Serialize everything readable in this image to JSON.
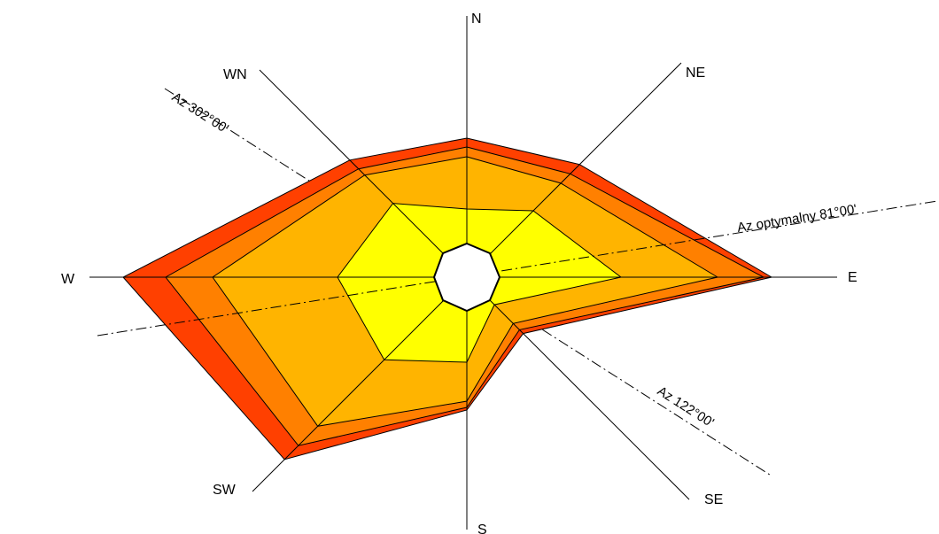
{
  "directions": {
    "n": "N",
    "ne": "NE",
    "e": "E",
    "se": "SE",
    "s": "S",
    "sw": "SW",
    "w": "W",
    "wn": "WN"
  },
  "azimuth_lines": {
    "az_302": "Az 302°00'",
    "az_122": "Az 122°00'",
    "az_optimal": "Az optymalny 81°00'"
  },
  "bands": [
    {
      "color": "#ff4000",
      "radii": {
        "N": 157,
        "NE": 180,
        "E": 344,
        "SE": 90,
        "S": 150,
        "SW": 291,
        "W": 388,
        "WN": 187
      }
    },
    {
      "color": "#ff8000",
      "radii": {
        "N": 147,
        "NE": 165,
        "E": 335,
        "SE": 84,
        "S": 147,
        "SW": 269,
        "W": 340,
        "WN": 173
      }
    },
    {
      "color": "#ffb400",
      "radii": {
        "N": 136,
        "NE": 150,
        "E": 283,
        "SE": 74,
        "S": 140,
        "SW": 238,
        "W": 287,
        "WN": 163
      }
    },
    {
      "color": "#ffff00",
      "radii": {
        "N": 77,
        "NE": 106,
        "E": 174,
        "SE": 44,
        "S": 96,
        "SW": 132,
        "W": 146,
        "WN": 118
      }
    }
  ],
  "colors": {
    "outer": "#ff4000",
    "band2": "#ff8000",
    "band3": "#ffb400",
    "inner": "#ffff00",
    "calm": "#ffffff",
    "lines": "#000000"
  }
}
